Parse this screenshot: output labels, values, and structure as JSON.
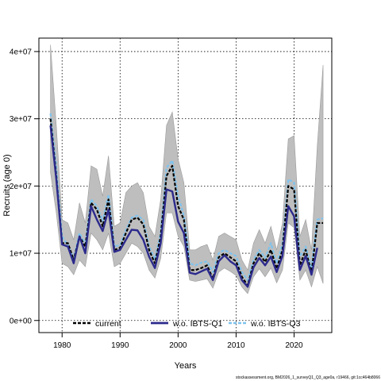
{
  "chart_data": {
    "type": "line",
    "xlabel": "Years",
    "ylabel": "Recruits (age 0)",
    "xlim": [
      1976,
      2026.5
    ],
    "ylim": [
      -1800000,
      42000000
    ],
    "xticks": [
      1980,
      1990,
      2000,
      2010,
      2020
    ],
    "yticks": [
      0,
      10000000,
      20000000,
      30000000,
      40000000
    ],
    "ytick_labels": [
      "0e+00",
      "1e+07",
      "2e+07",
      "3e+07",
      "4e+07"
    ],
    "grid": true,
    "legend_position": "bottom",
    "footnote": "stockassessment.org, BM2026_1_surveyQ1_Q3_age0a, r19466, git:1cc464b8066",
    "colors": {
      "band": "#bebebe",
      "band_edge": "#9a9a9a",
      "current": "#000000",
      "wo_q1": "#2c2a8c",
      "wo_q3": "#7ec3ee"
    },
    "series": [
      {
        "name": "current",
        "style": "dashed",
        "x": [
          1978,
          1979,
          1980,
          1981,
          1982,
          1983,
          1984,
          1985,
          1986,
          1987,
          1988,
          1989,
          1990,
          1991,
          1992,
          1993,
          1994,
          1995,
          1996,
          1997,
          1998,
          1999,
          2000,
          2001,
          2002,
          2003,
          2004,
          2005,
          2006,
          2007,
          2008,
          2009,
          2010,
          2011,
          2012,
          2013,
          2014,
          2015,
          2016,
          2017,
          2018,
          2019,
          2020,
          2021,
          2022,
          2023,
          2024,
          2025
        ],
        "values": [
          30000000,
          21500000,
          11500000,
          11500000,
          9000000,
          12500000,
          11000000,
          17500000,
          16500000,
          14000000,
          18000000,
          10500000,
          10800000,
          13000000,
          15000000,
          15300000,
          14300000,
          10500000,
          8500000,
          12500000,
          21500000,
          23000000,
          17000000,
          15000000,
          7500000,
          7500000,
          7800000,
          8200000,
          6200000,
          9400000,
          10000000,
          9400000,
          8800000,
          6500000,
          5200000,
          8500000,
          10000000,
          8700000,
          10500000,
          7700000,
          10500000,
          20000000,
          19500000,
          8200000,
          10500000,
          7000000,
          14500000,
          14500000
        ]
      },
      {
        "name": "w.o. IBTS-Q1",
        "style": "solid",
        "x": [
          1978,
          1979,
          1980,
          1981,
          1982,
          1983,
          1984,
          1985,
          1986,
          1987,
          1988,
          1989,
          1990,
          1991,
          1992,
          1993,
          1994,
          1995,
          1996,
          1997,
          1998,
          1999,
          2000,
          2001,
          2002,
          2003,
          2004,
          2005,
          2006,
          2007,
          2008,
          2009,
          2010,
          2011,
          2012,
          2013,
          2014,
          2015,
          2016,
          2017,
          2018,
          2019,
          2020,
          2021,
          2022,
          2023,
          2024
        ],
        "values": [
          29000000,
          21000000,
          11300000,
          11000000,
          8500000,
          12500000,
          10000000,
          17000000,
          15000000,
          13300000,
          16500000,
          10200000,
          10500000,
          12000000,
          13500000,
          13400000,
          12000000,
          9500000,
          7800000,
          11500000,
          19500000,
          19200000,
          14700000,
          13000000,
          7100000,
          6900000,
          7300000,
          7700000,
          6000000,
          8800000,
          9700000,
          8800000,
          8200000,
          6000000,
          5000000,
          7900000,
          9300000,
          8200000,
          9500000,
          7200000,
          9600000,
          17000000,
          15500000,
          7500000,
          9600000,
          6800000,
          10800000
        ]
      },
      {
        "name": "w.o. IBTS-Q3",
        "style": "dashed",
        "x": [
          1978,
          1979,
          1980,
          1981,
          1982,
          1983,
          1984,
          1985,
          1986,
          1987,
          1988,
          1989,
          1990,
          1991,
          1992,
          1993,
          1994,
          1995,
          1996,
          1997,
          1998,
          1999,
          2000,
          2001,
          2002,
          2003,
          2004,
          2005,
          2006,
          2007,
          2008,
          2009,
          2010,
          2011,
          2012,
          2013,
          2014,
          2015,
          2016,
          2017,
          2018,
          2019,
          2020,
          2021,
          2022,
          2023,
          2024,
          2025
        ],
        "values": [
          30800000,
          22800000,
          12500000,
          11200000,
          9200000,
          13000000,
          11300000,
          18000000,
          17000000,
          14800000,
          18700000,
          11000000,
          11200000,
          13500000,
          15300000,
          15600000,
          15000000,
          11000000,
          9200000,
          13000000,
          22700000,
          23800000,
          18500000,
          15600000,
          8500000,
          8200000,
          8600000,
          8800000,
          7200000,
          10000000,
          10500000,
          10000000,
          9600000,
          7200000,
          6000000,
          9000000,
          10500000,
          9300000,
          11500000,
          8500000,
          11400000,
          21000000,
          20500000,
          9500000,
          11000000,
          7800000,
          15000000,
          15200000
        ]
      }
    ],
    "confidence_band": {
      "x": [
        1978,
        1979,
        1980,
        1981,
        1982,
        1983,
        1984,
        1985,
        1986,
        1987,
        1988,
        1989,
        1990,
        1991,
        1992,
        1993,
        1994,
        1995,
        1996,
        1997,
        1998,
        1999,
        2000,
        2001,
        2002,
        2003,
        2004,
        2005,
        2006,
        2007,
        2008,
        2009,
        2010,
        2011,
        2012,
        2013,
        2014,
        2015,
        2016,
        2017,
        2018,
        2019,
        2020,
        2021,
        2022,
        2023,
        2024,
        2025
      ],
      "lower": [
        22000000,
        16000000,
        8500000,
        8000000,
        6800000,
        9000000,
        8000000,
        13000000,
        12000000,
        10500000,
        13000000,
        8000000,
        8500000,
        10000000,
        11500000,
        11000000,
        10000000,
        7500000,
        6300000,
        9200000,
        16000000,
        16000000,
        12500000,
        11000000,
        6000000,
        5800000,
        6000000,
        6200000,
        4800000,
        7200000,
        7800000,
        7300000,
        6700000,
        5000000,
        4000000,
        6500000,
        7700000,
        6500000,
        7800000,
        5600000,
        7500000,
        14500000,
        13800000,
        6000000,
        7500000,
        5000000,
        8000000,
        5500000
      ],
      "upper": [
        41000000,
        29000000,
        15000000,
        14500000,
        12000000,
        17500000,
        14500000,
        23000000,
        22500000,
        18500000,
        24500000,
        14000000,
        14500000,
        19000000,
        20000000,
        20500000,
        19000000,
        14000000,
        12500000,
        18000000,
        29000000,
        31000000,
        24000000,
        20500000,
        10500000,
        10500000,
        11000000,
        11300000,
        9000000,
        12500000,
        13000000,
        12500000,
        12000000,
        9000000,
        7500000,
        11500000,
        13500000,
        11500000,
        14000000,
        10500000,
        14500000,
        27000000,
        27500000,
        12500000,
        15000000,
        10500000,
        26000000,
        38000000
      ]
    }
  }
}
